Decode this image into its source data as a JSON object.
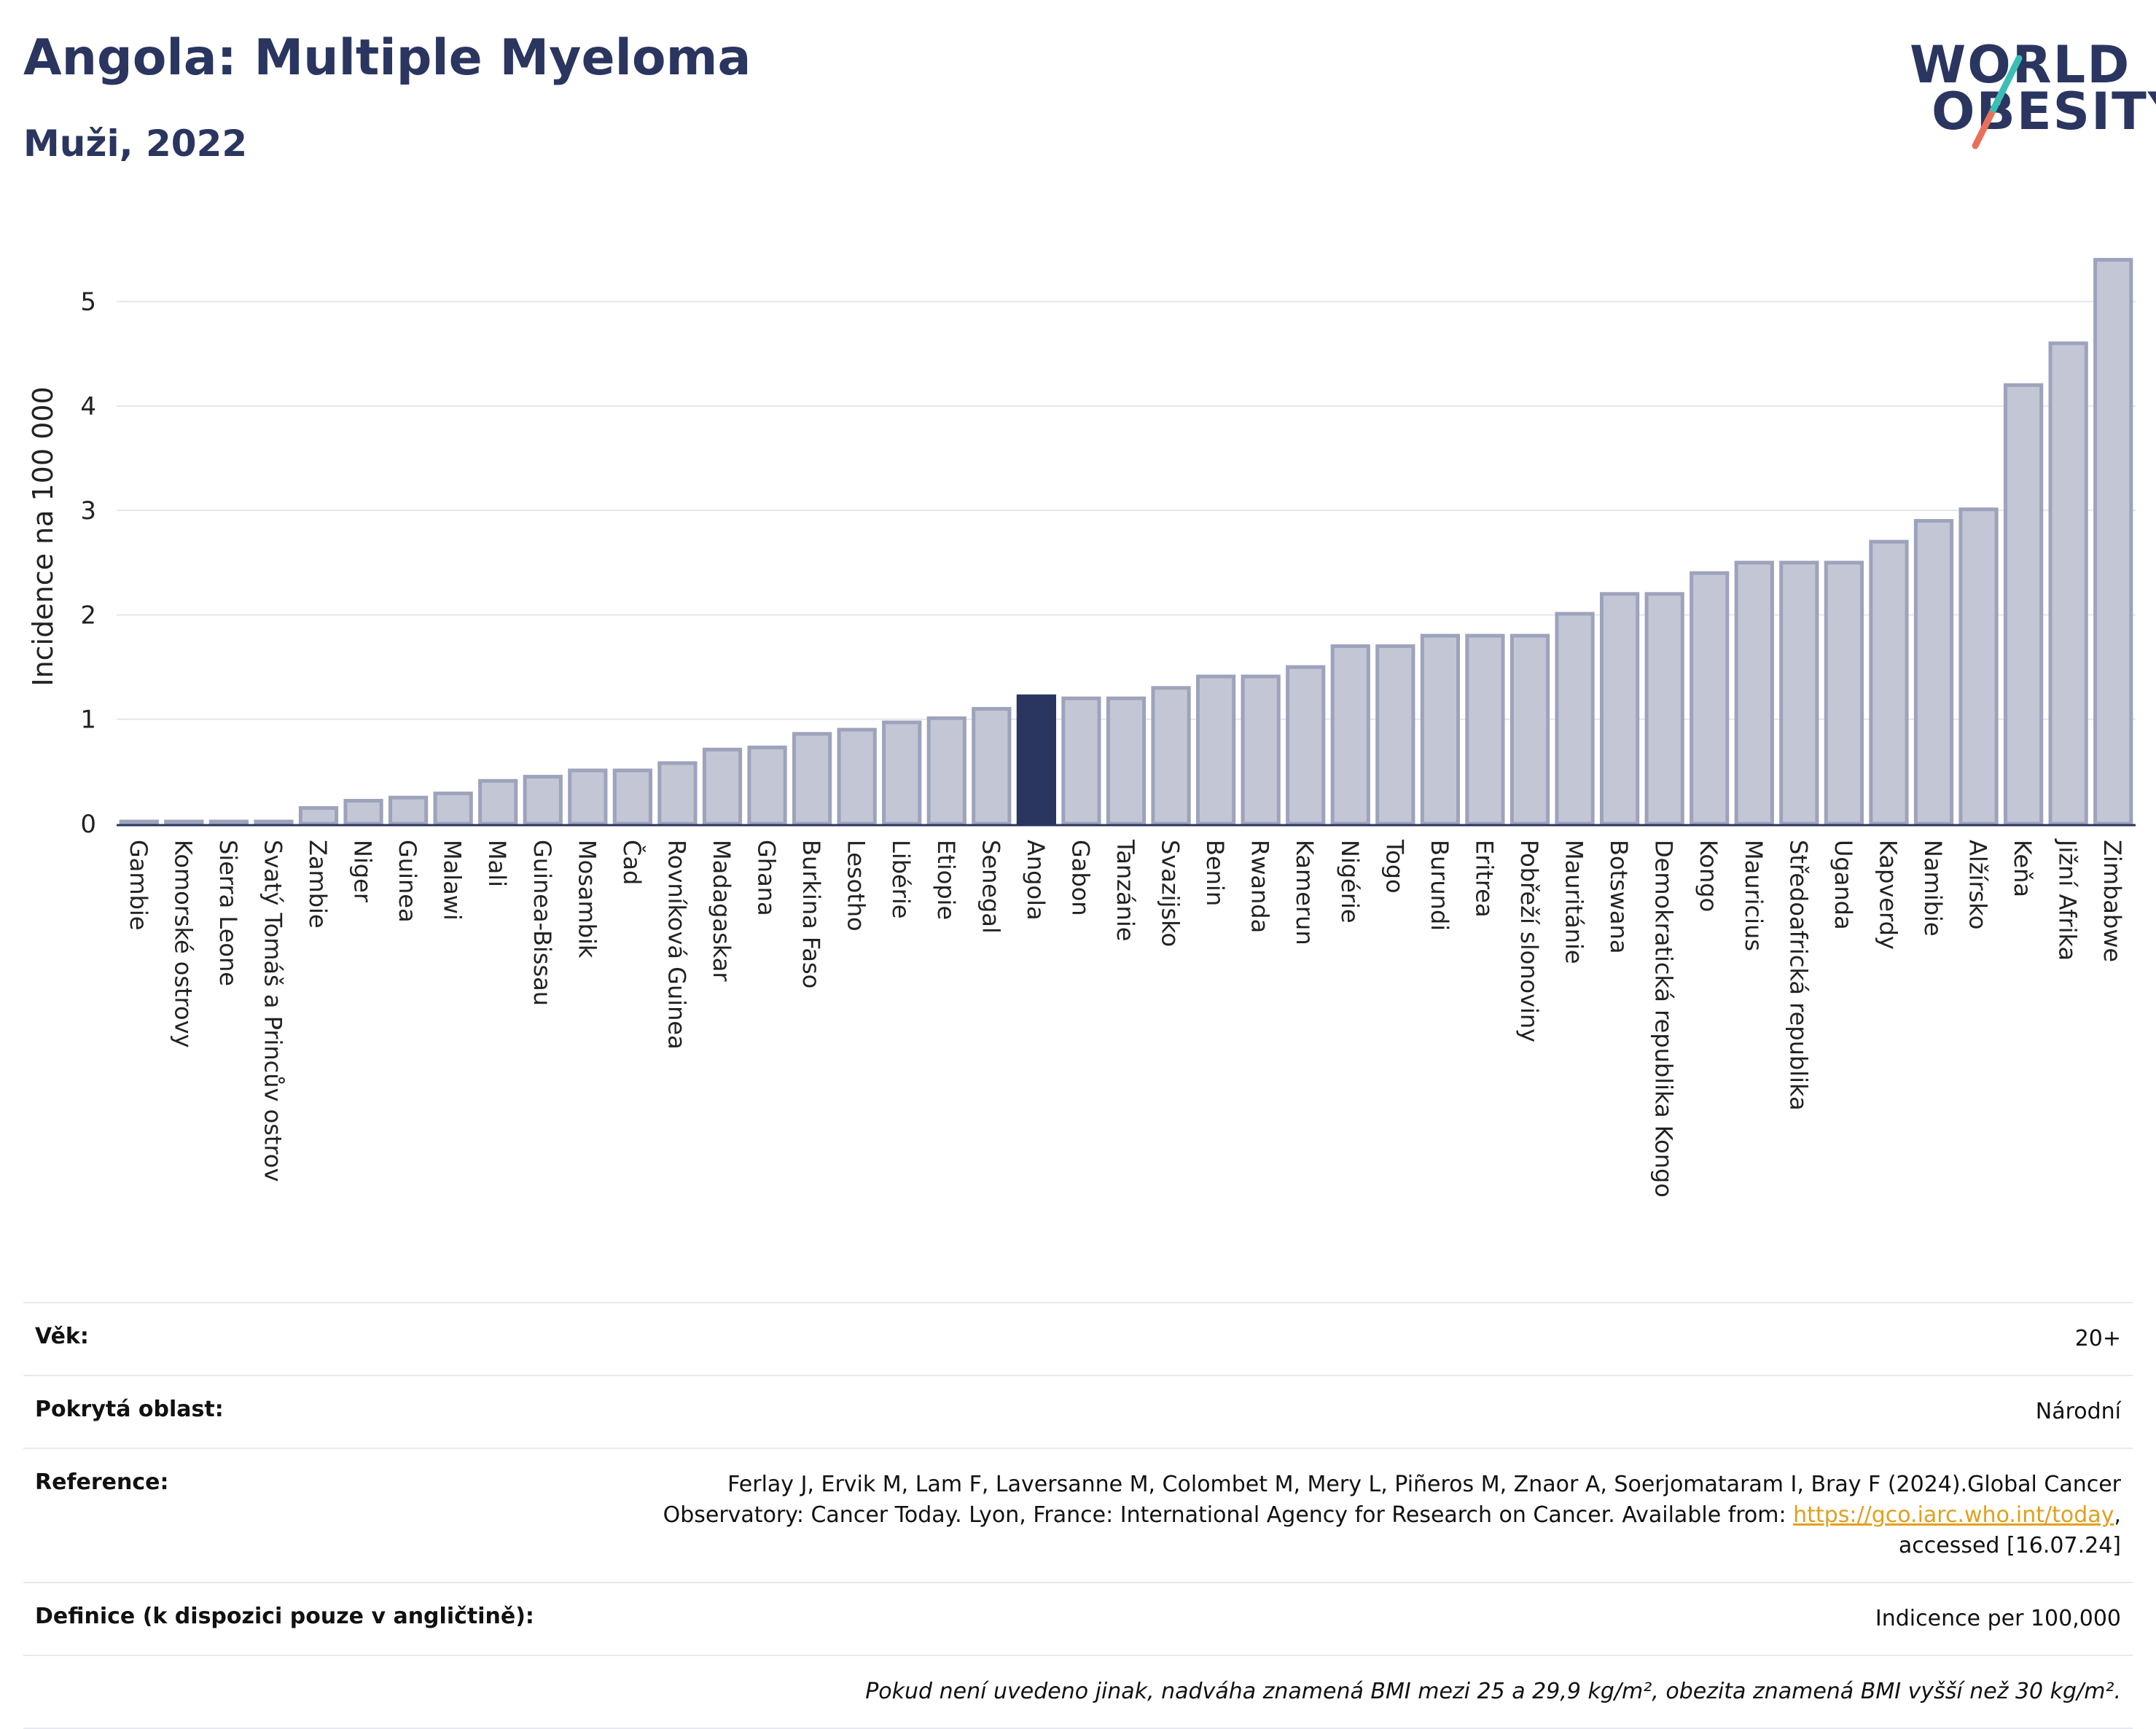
{
  "header": {
    "title": "Angola: Multiple Myeloma",
    "subtitle": "Muži, 2022"
  },
  "logo": {
    "line1": "WORLD",
    "line2": "OBESITY"
  },
  "chart_data": {
    "type": "bar",
    "ylabel": "Incidence na 100 000",
    "xlabel": "",
    "ylim": [
      0,
      5.5
    ],
    "yticks": [
      0,
      1,
      2,
      3,
      4,
      5
    ],
    "highlight": "Angola",
    "grid": true,
    "categories": [
      "Gambie",
      "Komorské ostrovy",
      "Sierra Leone",
      "Svatý Tomáš a Princův ostrov",
      "Zambie",
      "Niger",
      "Guinea",
      "Malawi",
      "Mali",
      "Guinea-Bissau",
      "Mosambik",
      "Čad",
      "Rovníková Guinea",
      "Madagaskar",
      "Ghana",
      "Burkina Faso",
      "Lesotho",
      "Libérie",
      "Etiopie",
      "Senegal",
      "Angola",
      "Gabon",
      "Tanzánie",
      "Svazijsko",
      "Benin",
      "Rwanda",
      "Kamerun",
      "Nigérie",
      "Togo",
      "Burundi",
      "Eritrea",
      "Pobřeží slonoviny",
      "Mauritánie",
      "Botswana",
      "Demokratická republika Kongo",
      "Kongo",
      "Mauricius",
      "Středoafrická republika",
      "Uganda",
      "Kapverdy",
      "Namibie",
      "Alžírsko",
      "Keňa",
      "Jižní Afrika",
      "Zimbabwe"
    ],
    "values": [
      0.02,
      0.02,
      0.02,
      0.02,
      0.15,
      0.22,
      0.25,
      0.29,
      0.41,
      0.45,
      0.51,
      0.51,
      0.58,
      0.71,
      0.73,
      0.86,
      0.9,
      0.97,
      1.01,
      1.1,
      1.22,
      1.2,
      1.2,
      1.3,
      1.41,
      1.41,
      1.5,
      1.7,
      1.7,
      1.8,
      1.8,
      1.8,
      2.01,
      2.2,
      2.2,
      2.4,
      2.5,
      2.5,
      2.5,
      2.7,
      2.9,
      3.01,
      4.2,
      4.6,
      5.4
    ]
  },
  "colors": {
    "bar": "#c3c6d4",
    "bar_stroke": "#9ea3bc",
    "highlight": "#2a3560",
    "grid": "#e4e6ee",
    "logo_teal": "#3bbfb5",
    "logo_coral": "#e8705a"
  },
  "meta": {
    "age_label": "Věk:",
    "age_value": "20+",
    "coverage_label": "Pokrytá oblast:",
    "coverage_value": "Národní",
    "reference_label": "Reference:",
    "reference_line1": "Ferlay J, Ervik M, Lam F, Laversanne M, Colombet M, Mery L, Piñeros M, Znaor A, Soerjomataram I, Bray F (2024).Global Cancer",
    "reference_line2": "Observatory: Cancer Today. Lyon, France: International Agency for Research on Cancer. Available from:",
    "reference_link": "https://gco.iarc.who.int/today",
    "reference_line3": "accessed [16.07.24]",
    "definition_label": "Definice (k dispozici pouze v angličtině):",
    "definition_value": "Indicence per 100,000",
    "note": "Pokud není uvedeno jinak, nadváha znamená BMI mezi 25 a 29,9 kg/m², obezita znamená BMI vyšší než 30 kg/m²."
  }
}
